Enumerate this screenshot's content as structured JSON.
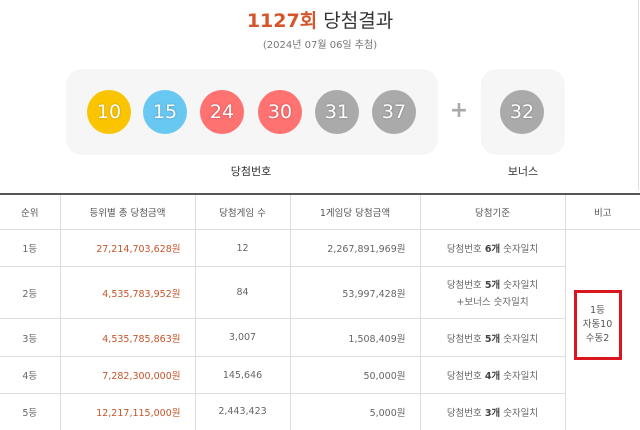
{
  "header": {
    "round": "1127회",
    "title": "당첨결과",
    "date": "(2024년 07월 06일 추첨)"
  },
  "draw": {
    "balls": [
      {
        "number": "10",
        "color": "#fbc400"
      },
      {
        "number": "15",
        "color": "#69c8f2"
      },
      {
        "number": "24",
        "color": "#ff7272"
      },
      {
        "number": "30",
        "color": "#ff7272"
      },
      {
        "number": "31",
        "color": "#aaaaaa"
      },
      {
        "number": "37",
        "color": "#aaaaaa"
      }
    ],
    "plus": "+",
    "bonus": {
      "number": "32",
      "color": "#aaaaaa"
    },
    "balls_label": "당첨번호",
    "bonus_label": "보너스"
  },
  "table": {
    "headers": [
      "순위",
      "등위별 총 당첨금액",
      "당첨게임 수",
      "1게임당 당첨금액",
      "당첨기준",
      "비고"
    ],
    "rows": [
      {
        "rank": "1등",
        "total": "27,214,703,628원",
        "winners": "12",
        "per_game": "2,267,891,969원",
        "criteria": {
          "pre": "당첨번호",
          "count": "6개",
          "post": "숫자일치"
        }
      },
      {
        "rank": "2등",
        "total": "4,535,783,952원",
        "winners": "84",
        "per_game": "53,997,428원",
        "criteria": {
          "pre": "당첨번호",
          "count": "5개",
          "post": "숫자일치",
          "extra": "+보너스 숫자일치"
        }
      },
      {
        "rank": "3등",
        "total": "4,535,785,863원",
        "winners": "3,007",
        "per_game": "1,508,409원",
        "criteria": {
          "pre": "당첨번호",
          "count": "5개",
          "post": "숫자일치"
        }
      },
      {
        "rank": "4등",
        "total": "7,282,300,000원",
        "winners": "145,646",
        "per_game": "50,000원",
        "criteria": {
          "pre": "당첨번호",
          "count": "4개",
          "post": "숫자일치"
        }
      },
      {
        "rank": "5등",
        "total": "12,217,115,000원",
        "winners": "2,443,423",
        "per_game": "5,000원",
        "criteria": {
          "pre": "당첨번호",
          "count": "3개",
          "post": "숫자일치"
        }
      }
    ],
    "note": [
      "1등",
      "자동10",
      "수동2"
    ]
  }
}
